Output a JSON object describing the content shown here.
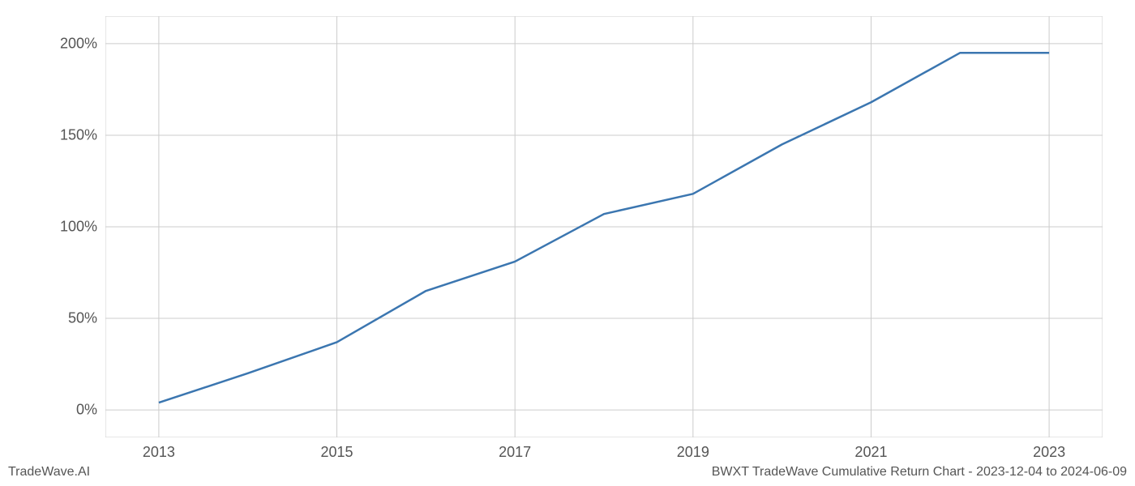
{
  "chart": {
    "type": "line",
    "x_values": [
      2013,
      2014,
      2015,
      2016,
      2017,
      2018,
      2019,
      2020,
      2021,
      2022,
      2023
    ],
    "y_values": [
      4,
      20,
      37,
      65,
      81,
      107,
      118,
      145,
      168,
      195,
      195
    ],
    "xlim": [
      2012.4,
      2023.6
    ],
    "ylim": [
      -15,
      215
    ],
    "x_ticks": [
      2013,
      2015,
      2017,
      2019,
      2021,
      2023
    ],
    "x_tick_labels": [
      "2013",
      "2015",
      "2017",
      "2019",
      "2021",
      "2023"
    ],
    "y_ticks": [
      0,
      50,
      100,
      150,
      200
    ],
    "y_tick_labels": [
      "0%",
      "50%",
      "100%",
      "150%",
      "200%"
    ],
    "line_color": "#3b76b0",
    "line_width": 2.5,
    "grid_color": "#cccccc",
    "background_color": "#ffffff",
    "tick_label_color": "#555555",
    "tick_label_fontsize": 18,
    "footer_fontsize": 16,
    "footer_color": "#555555"
  },
  "footer": {
    "left": "TradeWave.AI",
    "right": "BWXT TradeWave Cumulative Return Chart - 2023-12-04 to 2024-06-09"
  }
}
